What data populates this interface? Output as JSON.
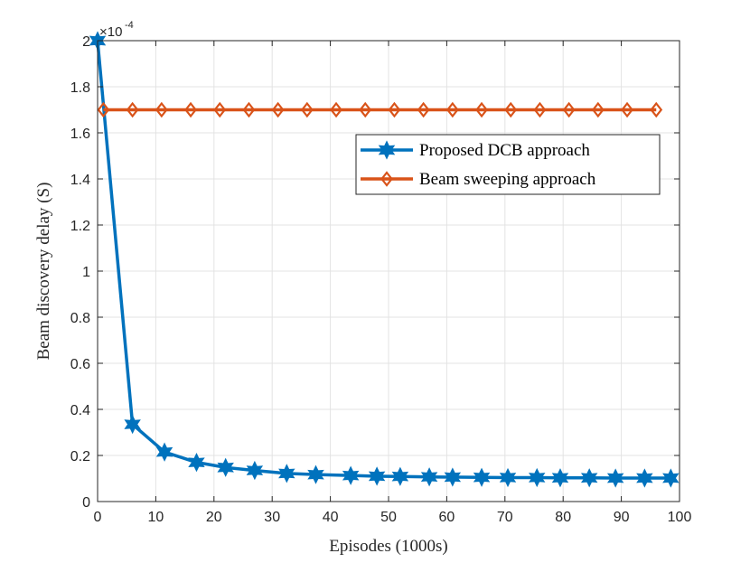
{
  "chart_data": {
    "type": "line",
    "title": "",
    "xlabel": "Episodes (1000s)",
    "ylabel": "Beam discovery delay (S)",
    "xlim": [
      0,
      100
    ],
    "ylim": [
      0,
      2
    ],
    "xticks": [
      "0",
      "10",
      "20",
      "30",
      "40",
      "50",
      "60",
      "70",
      "80",
      "90",
      "100"
    ],
    "yticks": [
      "0",
      "0.2",
      "0.4",
      "0.6",
      "0.8",
      "1",
      "1.2",
      "1.4",
      "1.6",
      "1.8",
      "2"
    ],
    "y_exponent": {
      "base": "×10",
      "power": "-4"
    },
    "grid": true,
    "legend_position": "upper-right",
    "series": [
      {
        "name": "Proposed DCB approach",
        "color": "#0072BD",
        "marker": "hexagram",
        "x": [
          0,
          6,
          11.5,
          17,
          22,
          27,
          32.5,
          37.5,
          43.5,
          48,
          52,
          57,
          61,
          66,
          70.5,
          75.5,
          79.5,
          84.5,
          89,
          94,
          98.5
        ],
        "y": [
          2.0,
          0.335,
          0.215,
          0.17,
          0.148,
          0.135,
          0.122,
          0.117,
          0.113,
          0.11,
          0.109,
          0.107,
          0.106,
          0.105,
          0.104,
          0.104,
          0.103,
          0.103,
          0.102,
          0.102,
          0.102
        ]
      },
      {
        "name": "Beam sweeping approach",
        "color": "#D95319",
        "marker": "diamond",
        "x": [
          1,
          6,
          11,
          16,
          21,
          26,
          31,
          36,
          41,
          46,
          51,
          56,
          61,
          66,
          71,
          76,
          81,
          86,
          91,
          96
        ],
        "y": [
          1.7,
          1.7,
          1.7,
          1.7,
          1.7,
          1.7,
          1.7,
          1.7,
          1.7,
          1.7,
          1.7,
          1.7,
          1.7,
          1.7,
          1.7,
          1.7,
          1.7,
          1.7,
          1.7,
          1.7
        ]
      }
    ]
  }
}
